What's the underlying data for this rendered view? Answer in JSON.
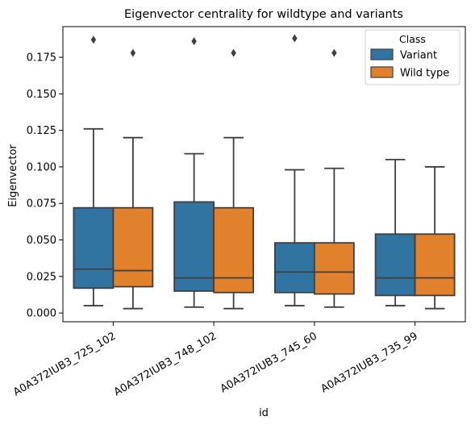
{
  "chart_data": {
    "type": "box",
    "title": "Eigenvector centrality for wildtype and variants",
    "xlabel": "id",
    "ylabel": "Eigenvector",
    "categories": [
      "A0A372IUB3_725_102",
      "A0A372IUB3_748_102",
      "A0A372IUB3_745_60",
      "A0A372IUB3_735_99"
    ],
    "ylim": [
      -0.006,
      0.196
    ],
    "yticks": [
      0.0,
      0.025,
      0.05,
      0.075,
      0.1,
      0.125,
      0.15,
      0.175
    ],
    "ytick_labels": [
      "0.000",
      "0.025",
      "0.050",
      "0.075",
      "0.100",
      "0.125",
      "0.150",
      "0.175"
    ],
    "grid": false,
    "legend": {
      "title": "Class",
      "placement": "top-right"
    },
    "series": [
      {
        "name": "Variant",
        "color": "#3274a1",
        "boxes": [
          {
            "whisker_low": 0.005,
            "q1": 0.017,
            "median": 0.03,
            "q3": 0.072,
            "whisker_high": 0.126,
            "outliers": [
              0.187
            ]
          },
          {
            "whisker_low": 0.004,
            "q1": 0.015,
            "median": 0.024,
            "q3": 0.076,
            "whisker_high": 0.109,
            "outliers": [
              0.186
            ]
          },
          {
            "whisker_low": 0.005,
            "q1": 0.014,
            "median": 0.028,
            "q3": 0.048,
            "whisker_high": 0.098,
            "outliers": [
              0.188
            ]
          },
          {
            "whisker_low": 0.005,
            "q1": 0.012,
            "median": 0.024,
            "q3": 0.054,
            "whisker_high": 0.105,
            "outliers": []
          }
        ]
      },
      {
        "name": "Wild type",
        "color": "#e1812c",
        "boxes": [
          {
            "whisker_low": 0.003,
            "q1": 0.018,
            "median": 0.029,
            "q3": 0.072,
            "whisker_high": 0.12,
            "outliers": [
              0.178
            ]
          },
          {
            "whisker_low": 0.003,
            "q1": 0.014,
            "median": 0.024,
            "q3": 0.072,
            "whisker_high": 0.12,
            "outliers": [
              0.178
            ]
          },
          {
            "whisker_low": 0.004,
            "q1": 0.013,
            "median": 0.028,
            "q3": 0.048,
            "whisker_high": 0.099,
            "outliers": [
              0.178
            ]
          },
          {
            "whisker_low": 0.003,
            "q1": 0.012,
            "median": 0.024,
            "q3": 0.054,
            "whisker_high": 0.1,
            "outliers": []
          }
        ]
      }
    ]
  }
}
